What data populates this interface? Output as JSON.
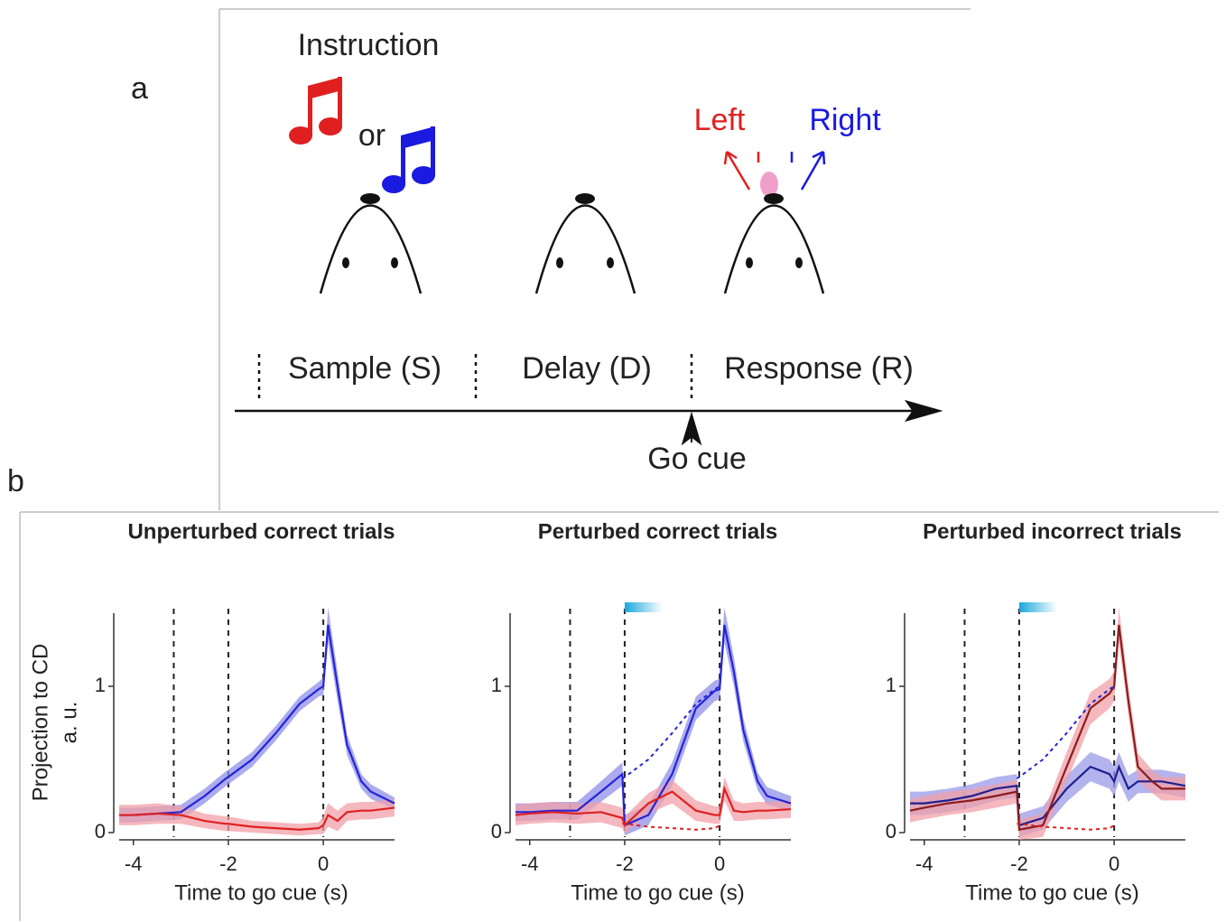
{
  "diagram": {
    "panel_a": "a",
    "instruction": "Instruction",
    "or": "or",
    "left": "Left",
    "right": "Right",
    "epochs": [
      "Sample (S)",
      "Delay (D)",
      "Response (R)"
    ],
    "go_cue": "Go cue",
    "panel_b": "b"
  },
  "chart_data": [
    {
      "type": "line",
      "title": "Unperturbed correct trials",
      "xlabel": "Time to go cue (s)",
      "ylabel": [
        "Projection to CD",
        "a. u."
      ],
      "x": [
        -4.3,
        -4,
        -3.5,
        -3,
        -2.5,
        -2.05,
        -2,
        -1.5,
        -1,
        -0.5,
        -0.1,
        0,
        0.1,
        0.3,
        0.5,
        0.8,
        1,
        1.5
      ],
      "xlim": [
        -4.3,
        1.5
      ],
      "xticks": [
        -4,
        -2,
        0
      ],
      "ylim": [
        0,
        1.5
      ],
      "yticks": [
        0,
        1
      ],
      "vlines": [
        -3.15,
        -2,
        0
      ],
      "series": [
        {
          "color": "#2424d8",
          "band_color": "#8f8fe8",
          "values": [
            0.12,
            0.12,
            0.13,
            0.14,
            0.25,
            0.37,
            0.38,
            0.5,
            0.68,
            0.88,
            0.98,
            1.0,
            1.42,
            1.0,
            0.6,
            0.35,
            0.28,
            0.2
          ],
          "errors": [
            0.05,
            0.05,
            0.05,
            0.05,
            0.05,
            0.05,
            0.05,
            0.05,
            0.05,
            0.05,
            0.05,
            0.06,
            0.12,
            0.1,
            0.07,
            0.05,
            0.05,
            0.04
          ]
        },
        {
          "color": "#e02020",
          "band_color": "#f0a0a8",
          "values": [
            0.12,
            0.12,
            0.13,
            0.12,
            0.08,
            0.06,
            0.06,
            0.04,
            0.03,
            0.02,
            0.03,
            0.05,
            0.12,
            0.08,
            0.14,
            0.15,
            0.15,
            0.17
          ],
          "errors": [
            0.07,
            0.07,
            0.07,
            0.06,
            0.05,
            0.05,
            0.05,
            0.04,
            0.04,
            0.04,
            0.04,
            0.06,
            0.08,
            0.07,
            0.06,
            0.06,
            0.06,
            0.06
          ]
        }
      ]
    },
    {
      "type": "line",
      "title": "Perturbed correct trials",
      "xlabel": "Time to go cue (s)",
      "x": [
        -4.3,
        -4,
        -3.5,
        -3,
        -2.5,
        -2.05,
        -2,
        -1.5,
        -1,
        -0.5,
        -0.1,
        0,
        0.1,
        0.3,
        0.5,
        0.8,
        1,
        1.5
      ],
      "xlim": [
        -4.3,
        1.5
      ],
      "xticks": [
        -4,
        -2,
        0
      ],
      "ylim": [
        0,
        1.5
      ],
      "yticks": [
        0,
        1
      ],
      "vlines": [
        -3.15,
        -2,
        0
      ],
      "stim": [
        -2,
        -1.2
      ],
      "series": [
        {
          "color": "#2424d8",
          "band_color": "#8f8fe8",
          "values": [
            0.14,
            0.14,
            0.15,
            0.15,
            0.28,
            0.4,
            0.05,
            0.12,
            0.4,
            0.85,
            0.97,
            0.98,
            1.42,
            1.1,
            0.7,
            0.35,
            0.25,
            0.2
          ],
          "errors": [
            0.06,
            0.06,
            0.06,
            0.06,
            0.07,
            0.08,
            0.07,
            0.07,
            0.08,
            0.08,
            0.07,
            0.07,
            0.12,
            0.1,
            0.08,
            0.06,
            0.06,
            0.05
          ]
        },
        {
          "color": "#e02020",
          "band_color": "#f0a0a8",
          "values": [
            0.12,
            0.13,
            0.14,
            0.13,
            0.14,
            0.1,
            0.05,
            0.2,
            0.28,
            0.15,
            0.12,
            0.12,
            0.3,
            0.15,
            0.14,
            0.15,
            0.15,
            0.16
          ],
          "errors": [
            0.07,
            0.07,
            0.07,
            0.07,
            0.07,
            0.07,
            0.06,
            0.07,
            0.08,
            0.07,
            0.06,
            0.06,
            0.08,
            0.07,
            0.06,
            0.06,
            0.06,
            0.06
          ]
        },
        {
          "color": "#2424d8",
          "dash": true,
          "values": [
            null,
            null,
            null,
            null,
            null,
            0.37,
            0.38,
            0.5,
            0.68,
            0.88,
            0.98,
            1.0,
            null,
            null,
            null,
            null,
            null,
            null
          ]
        },
        {
          "color": "#e02020",
          "dash": true,
          "values": [
            null,
            null,
            null,
            null,
            null,
            0.06,
            0.06,
            0.04,
            0.03,
            0.02,
            0.03,
            0.05,
            null,
            null,
            null,
            null,
            null,
            null
          ]
        }
      ]
    },
    {
      "type": "line",
      "title": "Perturbed incorrect trials",
      "xlabel": "Time to go cue (s)",
      "x": [
        -4.3,
        -4,
        -3.5,
        -3,
        -2.5,
        -2.05,
        -2,
        -1.5,
        -1,
        -0.5,
        -0.1,
        0,
        0.1,
        0.3,
        0.5,
        0.8,
        1,
        1.5
      ],
      "xlim": [
        -4.3,
        1.5
      ],
      "xticks": [
        -4,
        -2,
        0
      ],
      "ylim": [
        0,
        1.5
      ],
      "yticks": [
        0,
        1
      ],
      "vlines": [
        -3.15,
        -2,
        0
      ],
      "stim": [
        -2,
        -1.2
      ],
      "series": [
        {
          "color": "#1f1f8f",
          "band_color": "#9a9ae8",
          "values": [
            0.2,
            0.2,
            0.22,
            0.25,
            0.3,
            0.32,
            0.05,
            0.1,
            0.3,
            0.45,
            0.4,
            0.35,
            0.45,
            0.3,
            0.35,
            0.35,
            0.35,
            0.32
          ],
          "errors": [
            0.08,
            0.08,
            0.08,
            0.08,
            0.08,
            0.08,
            0.08,
            0.08,
            0.09,
            0.1,
            0.1,
            0.1,
            0.1,
            0.09,
            0.08,
            0.08,
            0.08,
            0.08
          ]
        },
        {
          "color": "#8c1c1c",
          "band_color": "#f0a0a8",
          "values": [
            0.15,
            0.17,
            0.2,
            0.22,
            0.25,
            0.28,
            0.02,
            0.05,
            0.45,
            0.85,
            0.95,
            1.0,
            1.42,
            0.9,
            0.45,
            0.35,
            0.3,
            0.3
          ],
          "errors": [
            0.08,
            0.08,
            0.08,
            0.08,
            0.08,
            0.08,
            0.07,
            0.08,
            0.1,
            0.11,
            0.1,
            0.1,
            0.12,
            0.1,
            0.09,
            0.08,
            0.08,
            0.08
          ]
        },
        {
          "color": "#2424d8",
          "dash": true,
          "values": [
            null,
            null,
            null,
            null,
            null,
            0.37,
            0.38,
            0.5,
            0.68,
            0.88,
            0.98,
            1.0,
            null,
            null,
            null,
            null,
            null,
            null
          ]
        },
        {
          "color": "#e02020",
          "dash": true,
          "values": [
            null,
            null,
            null,
            null,
            null,
            0.06,
            0.06,
            0.04,
            0.03,
            0.02,
            0.03,
            0.05,
            null,
            null,
            null,
            null,
            null,
            null
          ]
        }
      ]
    }
  ]
}
